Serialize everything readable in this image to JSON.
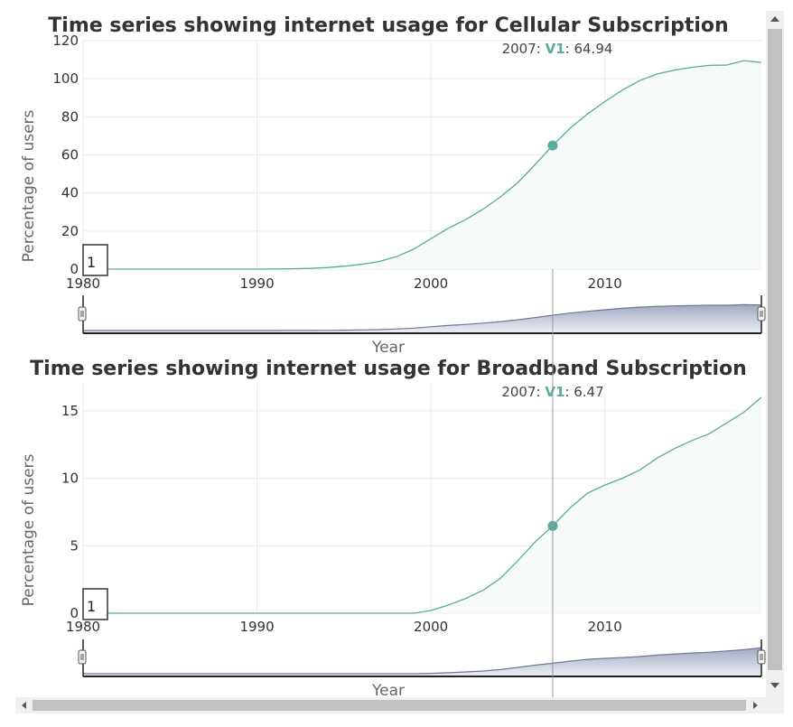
{
  "chart_data": [
    {
      "type": "area",
      "title": "Time series showing internet usage for Cellular Subscription",
      "xlabel": "Year",
      "ylabel": "Percentage of users",
      "xlim": [
        1980,
        2019
      ],
      "ylim": [
        0,
        120
      ],
      "x_ticks": [
        "1980",
        "1990",
        "2000",
        "2010"
      ],
      "y_ticks": [
        "0",
        "20",
        "40",
        "60",
        "80",
        "100",
        "120"
      ],
      "grid": true,
      "range_selector_value": "1",
      "tooltip": {
        "x_label": "2007",
        "series_label": "V1",
        "value_label": "64.94",
        "x": 2007,
        "y": 64.94
      },
      "series": [
        {
          "name": "V1",
          "color": "#5aab9b",
          "x": [
            1980,
            1981,
            1982,
            1983,
            1984,
            1985,
            1986,
            1987,
            1988,
            1989,
            1990,
            1991,
            1992,
            1993,
            1994,
            1995,
            1996,
            1997,
            1998,
            1999,
            2000,
            2001,
            2002,
            2003,
            2004,
            2005,
            2006,
            2007,
            2008,
            2009,
            2010,
            2011,
            2012,
            2013,
            2014,
            2015,
            2016,
            2017,
            2018,
            2019
          ],
          "values": [
            0,
            0,
            0,
            0,
            0,
            0,
            0,
            0,
            0,
            0,
            0,
            0.1,
            0.2,
            0.4,
            0.8,
            1.5,
            2.5,
            4,
            6.5,
            10.5,
            16,
            21.5,
            26,
            31.5,
            38,
            45.5,
            55,
            64.94,
            74,
            81.5,
            88,
            94,
            99,
            102.5,
            104.5,
            106,
            107,
            107.2,
            109.5,
            108.5
          ]
        }
      ]
    },
    {
      "type": "area",
      "title": "Time series showing internet usage for Broadband Subscription",
      "xlabel": "Year",
      "ylabel": "Percentage of users",
      "xlim": [
        1980,
        2019
      ],
      "ylim": [
        0,
        17
      ],
      "x_ticks": [
        "1980",
        "1990",
        "2000",
        "2010"
      ],
      "y_ticks": [
        "0",
        "5",
        "10",
        "15"
      ],
      "grid": true,
      "range_selector_value": "1",
      "tooltip": {
        "x_label": "2007",
        "series_label": "V1",
        "value_label": "6.47",
        "x": 2007,
        "y": 6.47
      },
      "series": [
        {
          "name": "V1",
          "color": "#5aab9b",
          "x": [
            1980,
            1981,
            1982,
            1983,
            1984,
            1985,
            1986,
            1987,
            1988,
            1989,
            1990,
            1991,
            1992,
            1993,
            1994,
            1995,
            1996,
            1997,
            1998,
            1999,
            2000,
            2001,
            2002,
            2003,
            2004,
            2005,
            2006,
            2007,
            2008,
            2009,
            2010,
            2011,
            2012,
            2013,
            2014,
            2015,
            2016,
            2017,
            2018,
            2019
          ],
          "values": [
            0,
            0,
            0,
            0,
            0,
            0,
            0,
            0,
            0,
            0,
            0,
            0,
            0,
            0,
            0,
            0,
            0,
            0,
            0,
            0,
            0.2,
            0.6,
            1.1,
            1.7,
            2.6,
            3.9,
            5.3,
            6.47,
            7.8,
            8.9,
            9.5,
            10,
            10.6,
            11.5,
            12.2,
            12.8,
            13.3,
            14.1,
            14.9,
            16
          ]
        }
      ]
    }
  ],
  "ui": {
    "grid_color": "#eaeaea",
    "line_color": "#5aab9b",
    "area_fill": "#f6faf9",
    "navigator_fill_top": "#a2aac2",
    "navigator_fill_bottom": "#eef0f6",
    "navigator_line": "#6e7799",
    "crosshair_color": "#999999",
    "scrollbar_track": "#f0f0f0",
    "scrollbar_thumb": "#c1c1c1",
    "icons": [
      "scroll-up-arrow-icon",
      "scroll-down-arrow-icon",
      "scroll-left-arrow-icon",
      "scroll-right-arrow-icon",
      "navigator-handle-icon"
    ]
  }
}
